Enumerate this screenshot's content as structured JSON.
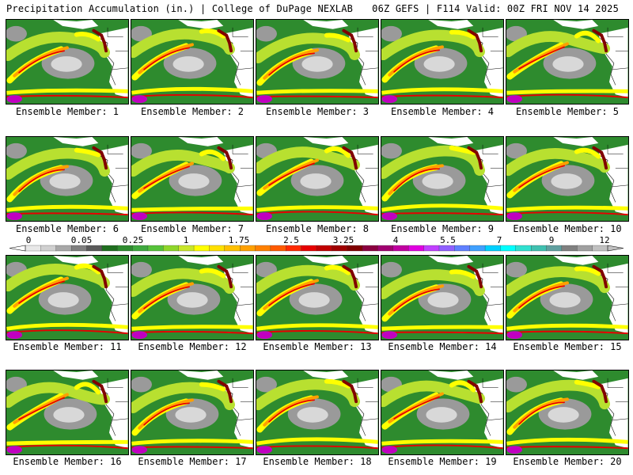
{
  "header": {
    "title_left": "Precipitation Accumulation (in.) | College of DuPage NEXLAB",
    "title_right": "06Z GEFS | F114 Valid: 00Z FRI NOV 14 2025"
  },
  "members": [
    {
      "label": "Ensemble Member: 1"
    },
    {
      "label": "Ensemble Member: 2"
    },
    {
      "label": "Ensemble Member: 3"
    },
    {
      "label": "Ensemble Member: 4"
    },
    {
      "label": "Ensemble Member: 5"
    },
    {
      "label": "Ensemble Member: 6"
    },
    {
      "label": "Ensemble Member: 7"
    },
    {
      "label": "Ensemble Member: 8"
    },
    {
      "label": "Ensemble Member: 9"
    },
    {
      "label": "Ensemble Member: 10"
    },
    {
      "label": "Ensemble Member: 11"
    },
    {
      "label": "Ensemble Member: 12"
    },
    {
      "label": "Ensemble Member: 13"
    },
    {
      "label": "Ensemble Member: 14"
    },
    {
      "label": "Ensemble Member: 15"
    },
    {
      "label": "Ensemble Member: 16"
    },
    {
      "label": "Ensemble Member: 17"
    },
    {
      "label": "Ensemble Member: 18"
    },
    {
      "label": "Ensemble Member: 19"
    },
    {
      "label": "Ensemble Member: 20"
    }
  ],
  "colorbar": {
    "labels": [
      "0",
      "0.05",
      "0.25",
      "1",
      "1.75",
      "2.5",
      "3.25",
      "4",
      "5.5",
      "7",
      "9",
      "12"
    ],
    "colors": [
      "#e8e8e8",
      "#d0d0d0",
      "#a8a8a8",
      "#808080",
      "#5a5a5a",
      "#1f6e1f",
      "#2e8b2e",
      "#3fa83f",
      "#56c23a",
      "#8fd62a",
      "#c8e62a",
      "#ffff00",
      "#ffe000",
      "#ffc000",
      "#ffa000",
      "#ff8000",
      "#ff5a00",
      "#ff2a00",
      "#e60000",
      "#c00000",
      "#a00000",
      "#800000",
      "#8b0040",
      "#a00070",
      "#c000a0",
      "#e000e0",
      "#c040ff",
      "#9060ff",
      "#6080ff",
      "#40a0ff",
      "#00d0ff",
      "#00ffff",
      "#30e0d0",
      "#40c0b0",
      "#60a0a0",
      "#808080",
      "#a0a0a0",
      "#c0c0c0"
    ]
  },
  "map_colors": {
    "ocean_low": "#2e8b2e",
    "gray": "#9a9a9a",
    "light_gray": "#d8d8d8",
    "yellow": "#ffff00",
    "yellow_green": "#b8e030",
    "orange": "#ffa000",
    "red": "#e60000",
    "dark_red": "#800000",
    "magenta": "#c000c0",
    "land_white": "#ffffff"
  }
}
